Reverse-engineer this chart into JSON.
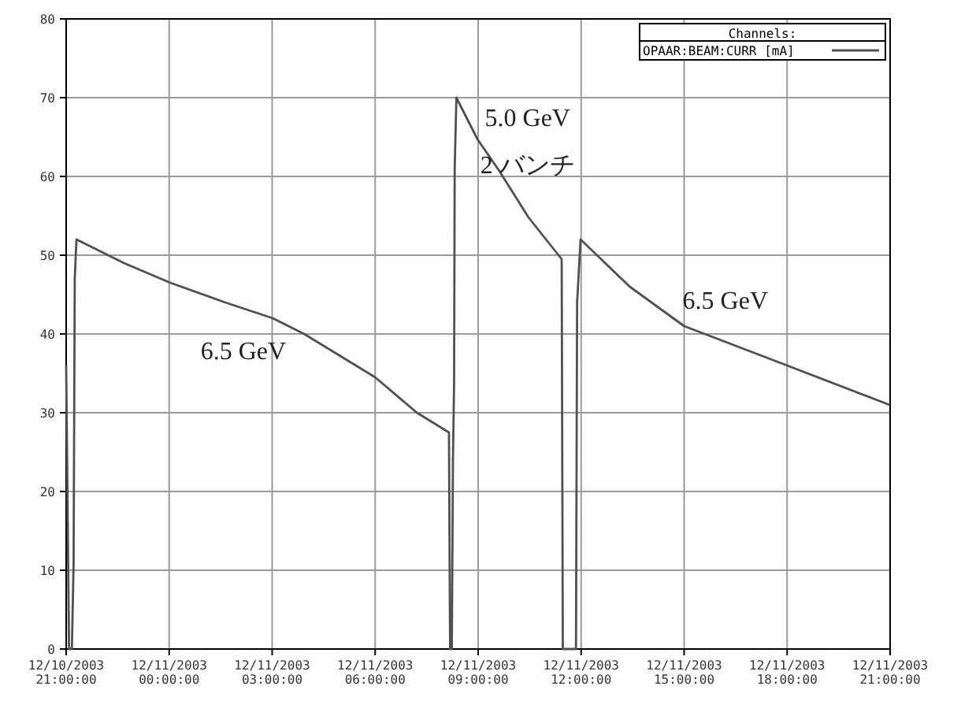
{
  "chart_data": {
    "type": "line",
    "legend_title": "Channels:",
    "legend": "top right",
    "grid": true,
    "series": [
      {
        "name": "OPAAR:BEAM:CURR [mA]",
        "color": "#505050",
        "x": [
          "2003-12-10T21:00",
          "2003-12-10T21:05",
          "2003-12-10T21:10",
          "2003-12-10T21:13",
          "2003-12-10T21:15",
          "2003-12-10T21:18",
          "2003-12-10T22:41",
          "2003-12-11T00:02",
          "2003-12-11T01:38",
          "2003-12-11T03:01",
          "2003-12-11T03:56",
          "2003-12-11T06:00",
          "2003-12-11T07:13",
          "2003-12-11T08:09",
          "2003-12-11T08:11",
          "2003-12-11T08:14",
          "2003-12-11T08:16",
          "2003-12-11T08:18",
          "2003-12-11T08:19",
          "2003-12-11T08:22",
          "2003-12-11T08:59",
          "2003-12-11T09:37",
          "2003-12-11T10:28",
          "2003-12-11T11:26",
          "2003-12-11T11:28",
          "2003-12-11T11:51",
          "2003-12-11T11:53",
          "2003-12-11T11:59",
          "2003-12-11T13:25",
          "2003-12-11T15:00",
          "2003-12-11T18:00",
          "2003-12-11T20:59"
        ],
        "values": [
          36,
          0,
          0,
          11,
          47,
          52,
          49,
          46.5,
          44,
          42,
          40,
          34.5,
          30,
          27.5,
          0,
          0,
          24,
          34,
          61,
          70,
          64.7,
          60.7,
          54.8,
          49.5,
          0,
          0,
          44,
          52,
          46,
          41,
          36,
          31
        ]
      }
    ],
    "xlim": [
      "2003-12-10T21:00",
      "2003-12-11T21:00"
    ],
    "xticks": [
      {
        "value": "2003-12-10T21:00",
        "label": "12/10/2003\n21:00:00"
      },
      {
        "value": "2003-12-11T00:00",
        "label": "12/11/2003\n00:00:00"
      },
      {
        "value": "2003-12-11T03:00",
        "label": "12/11/2003\n03:00:00"
      },
      {
        "value": "2003-12-11T06:00",
        "label": "12/11/2003\n06:00:00"
      },
      {
        "value": "2003-12-11T09:00",
        "label": "12/11/2003\n09:00:00"
      },
      {
        "value": "2003-12-11T12:00",
        "label": "12/11/2003\n12:00:00"
      },
      {
        "value": "2003-12-11T15:00",
        "label": "12/11/2003\n15:00:00"
      },
      {
        "value": "2003-12-11T18:00",
        "label": "12/11/2003\n18:00:00"
      },
      {
        "value": "2003-12-11T21:00",
        "label": "12/11/2003\n21:00:00"
      }
    ],
    "ylim": [
      0,
      80
    ],
    "yticks": [
      0,
      10,
      20,
      30,
      40,
      50,
      60,
      70,
      80
    ],
    "annotations": [
      "6.5 GeV",
      "5.0 GeV",
      "2 バンチ",
      "6.5 GeV"
    ]
  }
}
